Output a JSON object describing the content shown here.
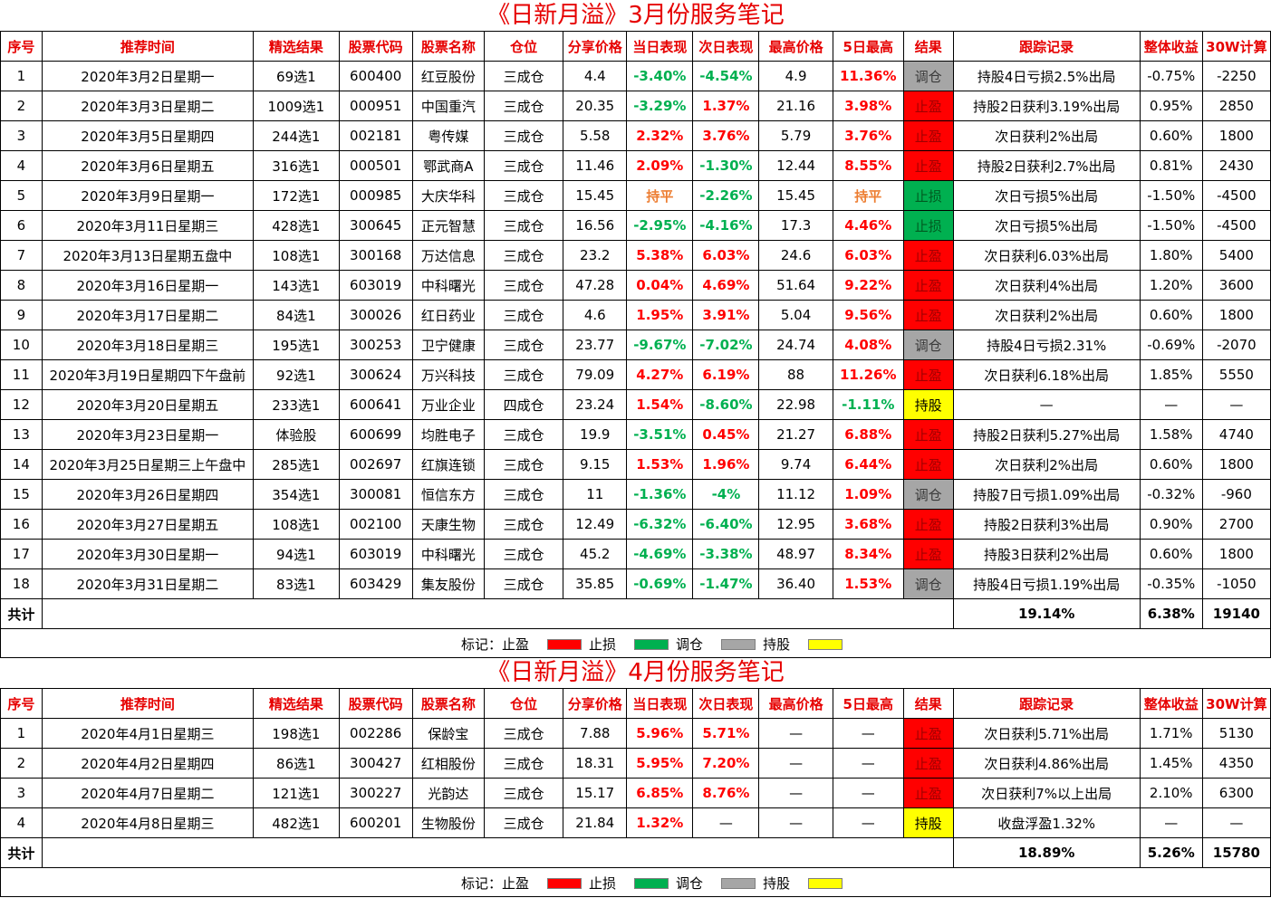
{
  "colors": {
    "title": "#e60000",
    "profit": "#ff0000",
    "loss": "#00b050",
    "adjust": "#a6a6a6",
    "hold": "#ffff00",
    "flat": "#ed7d31"
  },
  "headers": [
    "序号",
    "推荐时间",
    "精选结果",
    "股票代码",
    "股票名称",
    "仓位",
    "分享价格",
    "当日表现",
    "次日表现",
    "最高价格",
    "5日最高",
    "结果",
    "跟踪记录",
    "整体收益",
    "30W计算"
  ],
  "legend": {
    "prefix": "标记：",
    "items": [
      {
        "label": "止盈",
        "color": "#ff0000"
      },
      {
        "label": "止损",
        "color": "#00b050"
      },
      {
        "label": "调仓",
        "color": "#a6a6a6"
      },
      {
        "label": "持股",
        "color": "#ffff00"
      }
    ]
  },
  "march": {
    "title": "《日新月溢》3月份服务笔记",
    "rows": [
      [
        "1",
        "2020年3月2日星期一",
        "69选1",
        "600400",
        "红豆股份",
        "三成仓",
        "4.4",
        "-3.40%",
        "-4.54%",
        "4.9",
        "11.36%",
        "调仓",
        "持股4日亏损2.5%出局",
        "-0.75%",
        "-2250"
      ],
      [
        "2",
        "2020年3月3日星期二",
        "1009选1",
        "000951",
        "中国重汽",
        "三成仓",
        "20.35",
        "-3.29%",
        "1.37%",
        "21.16",
        "3.98%",
        "止盈",
        "持股2日获利3.19%出局",
        "0.95%",
        "2850"
      ],
      [
        "3",
        "2020年3月5日星期四",
        "244选1",
        "002181",
        "粤传媒",
        "三成仓",
        "5.58",
        "2.32%",
        "3.76%",
        "5.79",
        "3.76%",
        "止盈",
        "次日获利2%出局",
        "0.60%",
        "1800"
      ],
      [
        "4",
        "2020年3月6日星期五",
        "316选1",
        "000501",
        "鄂武商A",
        "三成仓",
        "11.46",
        "2.09%",
        "-1.30%",
        "12.44",
        "8.55%",
        "止盈",
        "持股2日获利2.7%出局",
        "0.81%",
        "2430"
      ],
      [
        "5",
        "2020年3月9日星期一",
        "172选1",
        "000985",
        "大庆华科",
        "三成仓",
        "15.45",
        "持平",
        "-2.26%",
        "15.45",
        "持平",
        "止损",
        "次日亏损5%出局",
        "-1.50%",
        "-4500"
      ],
      [
        "6",
        "2020年3月11日星期三",
        "428选1",
        "300645",
        "正元智慧",
        "三成仓",
        "16.56",
        "-2.95%",
        "-4.16%",
        "17.3",
        "4.46%",
        "止损",
        "次日亏损5%出局",
        "-1.50%",
        "-4500"
      ],
      [
        "7",
        "2020年3月13日星期五盘中",
        "108选1",
        "300168",
        "万达信息",
        "三成仓",
        "23.2",
        "5.38%",
        "6.03%",
        "24.6",
        "6.03%",
        "止盈",
        "次日获利6.03%出局",
        "1.80%",
        "5400"
      ],
      [
        "8",
        "2020年3月16日星期一",
        "143选1",
        "603019",
        "中科曙光",
        "三成仓",
        "47.28",
        "0.04%",
        "4.69%",
        "51.64",
        "9.22%",
        "止盈",
        "次日获利4%出局",
        "1.20%",
        "3600"
      ],
      [
        "9",
        "2020年3月17日星期二",
        "84选1",
        "300026",
        "红日药业",
        "三成仓",
        "4.6",
        "1.95%",
        "3.91%",
        "5.04",
        "9.56%",
        "止盈",
        "次日获利2%出局",
        "0.60%",
        "1800"
      ],
      [
        "10",
        "2020年3月18日星期三",
        "195选1",
        "300253",
        "卫宁健康",
        "三成仓",
        "23.77",
        "-9.67%",
        "-7.02%",
        "24.74",
        "4.08%",
        "调仓",
        "持股4日亏损2.31%",
        "-0.69%",
        "-2070"
      ],
      [
        "11",
        "2020年3月19日星期四下午盘前",
        "92选1",
        "300624",
        "万兴科技",
        "三成仓",
        "79.09",
        "4.27%",
        "6.19%",
        "88",
        "11.26%",
        "止盈",
        "次日获利6.18%出局",
        "1.85%",
        "5550"
      ],
      [
        "12",
        "2020年3月20日星期五",
        "233选1",
        "600641",
        "万业企业",
        "四成仓",
        "23.24",
        "1.54%",
        "-8.60%",
        "22.98",
        "-1.11%",
        "持股",
        "—",
        "—",
        "—"
      ],
      [
        "13",
        "2020年3月23日星期一",
        "体验股",
        "600699",
        "均胜电子",
        "三成仓",
        "19.9",
        "-3.51%",
        "0.45%",
        "21.27",
        "6.88%",
        "止盈",
        "持股2日获利5.27%出局",
        "1.58%",
        "4740"
      ],
      [
        "14",
        "2020年3月25日星期三上午盘中",
        "285选1",
        "002697",
        "红旗连锁",
        "三成仓",
        "9.15",
        "1.53%",
        "1.96%",
        "9.74",
        "6.44%",
        "止盈",
        "次日获利2%出局",
        "0.60%",
        "1800"
      ],
      [
        "15",
        "2020年3月26日星期四",
        "354选1",
        "300081",
        "恒信东方",
        "三成仓",
        "11",
        "-1.36%",
        "-4%",
        "11.12",
        "1.09%",
        "调仓",
        "持股7日亏损1.09%出局",
        "-0.32%",
        "-960"
      ],
      [
        "16",
        "2020年3月27日星期五",
        "108选1",
        "002100",
        "天康生物",
        "三成仓",
        "12.49",
        "-6.32%",
        "-6.40%",
        "12.95",
        "3.68%",
        "止盈",
        "持股2日获利3%出局",
        "0.90%",
        "2700"
      ],
      [
        "17",
        "2020年3月30日星期一",
        "94选1",
        "603019",
        "中科曙光",
        "三成仓",
        "45.2",
        "-4.69%",
        "-3.38%",
        "48.97",
        "8.34%",
        "止盈",
        "持股3日获利2%出局",
        "0.60%",
        "1800"
      ],
      [
        "18",
        "2020年3月31日星期二",
        "83选1",
        "603429",
        "集友股份",
        "三成仓",
        "35.85",
        "-0.69%",
        "-1.47%",
        "36.40",
        "1.53%",
        "调仓",
        "持股4日亏损1.19%出局",
        "-0.35%",
        "-1050"
      ]
    ],
    "total": {
      "label": "共计",
      "track": "19.14%",
      "overall": "6.38%",
      "calc": "19140"
    }
  },
  "april": {
    "title": "《日新月溢》4月份服务笔记",
    "rows": [
      [
        "1",
        "2020年4月1日星期三",
        "198选1",
        "002286",
        "保龄宝",
        "三成仓",
        "7.88",
        "5.96%",
        "5.71%",
        "—",
        "—",
        "止盈",
        "次日获利5.71%出局",
        "1.71%",
        "5130"
      ],
      [
        "2",
        "2020年4月2日星期四",
        "86选1",
        "300427",
        "红相股份",
        "三成仓",
        "18.31",
        "5.95%",
        "7.20%",
        "—",
        "—",
        "止盈",
        "次日获利4.86%出局",
        "1.45%",
        "4350"
      ],
      [
        "3",
        "2020年4月7日星期二",
        "121选1",
        "300227",
        "光韵达",
        "三成仓",
        "15.17",
        "6.85%",
        "8.76%",
        "—",
        "—",
        "止盈",
        "次日获利7%以上出局",
        "2.10%",
        "6300"
      ],
      [
        "4",
        "2020年4月8日星期三",
        "482选1",
        "600201",
        "生物股份",
        "三成仓",
        "21.84",
        "1.32%",
        "—",
        "—",
        "—",
        "持股",
        "收盘浮盈1.32%",
        "—",
        "—"
      ]
    ],
    "total": {
      "label": "共计",
      "track": "18.89%",
      "overall": "5.26%",
      "calc": "15780"
    }
  }
}
